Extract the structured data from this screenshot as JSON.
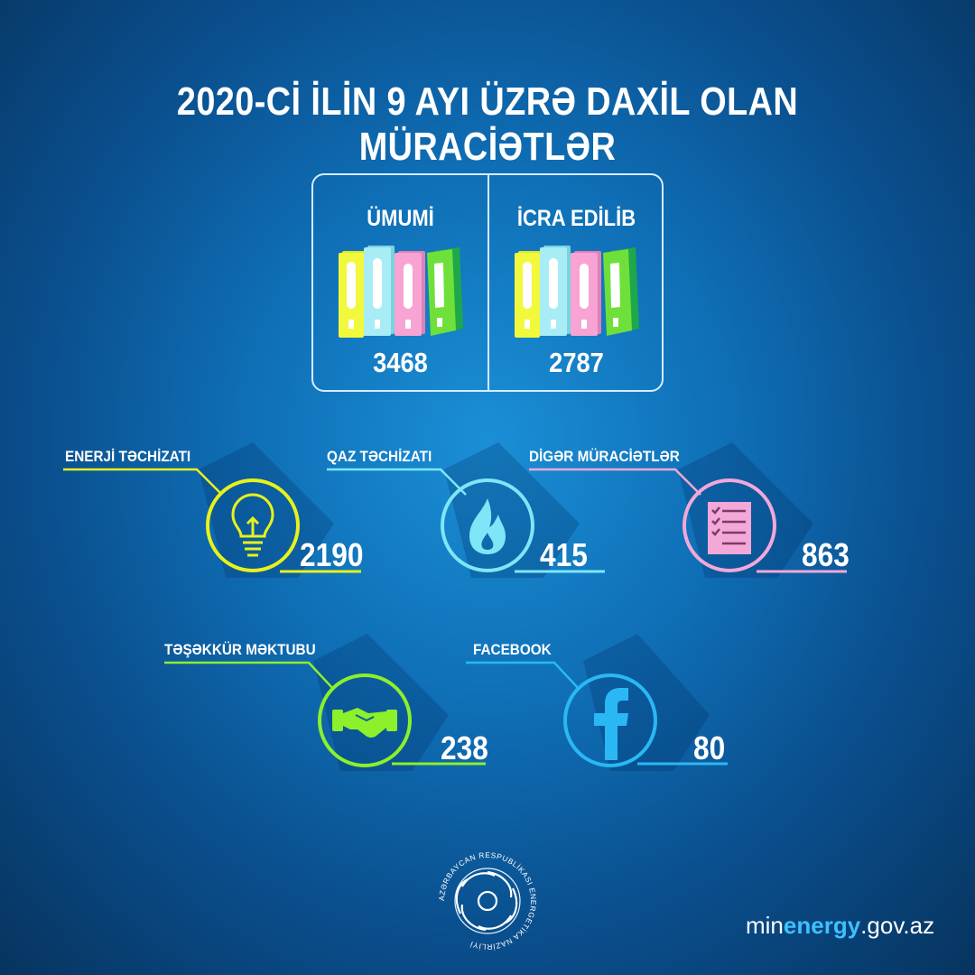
{
  "title": "2020-Cİ İLİN 9 AYI ÜZRƏ DAXİL OLAN MÜRACİƏTLƏR",
  "summary": {
    "total": {
      "label": "ÜMUMİ",
      "value": "3468"
    },
    "done": {
      "label": "İCRA EDİLİB",
      "value": "2787"
    }
  },
  "stats": [
    {
      "label": "ENERJİ TƏCHİZATI",
      "value": "2190",
      "color": "#e8f21a",
      "icon": "lightbulb-icon"
    },
    {
      "label": "QAZ TƏCHİZATI",
      "value": "415",
      "color": "#7fe6f7",
      "icon": "flame-icon"
    },
    {
      "label": "DİGƏR MÜRACİƏTLƏR",
      "value": "863",
      "color": "#f3a8d8",
      "icon": "checklist-icon"
    },
    {
      "label": "TƏŞƏKKÜR MƏKTUBU",
      "value": "238",
      "color": "#8cf02a",
      "icon": "handshake-icon"
    },
    {
      "label": "FACEBOOK",
      "value": "80",
      "color": "#2ab8f5",
      "icon": "facebook-icon"
    }
  ],
  "logo": {
    "text": "AZƏRBAYCAN RESPUBLİKASI ENERGETİKA NAZİRLİYİ"
  },
  "website": {
    "prefix": "min",
    "brand": "energy",
    "suffix": ".gov.az"
  }
}
